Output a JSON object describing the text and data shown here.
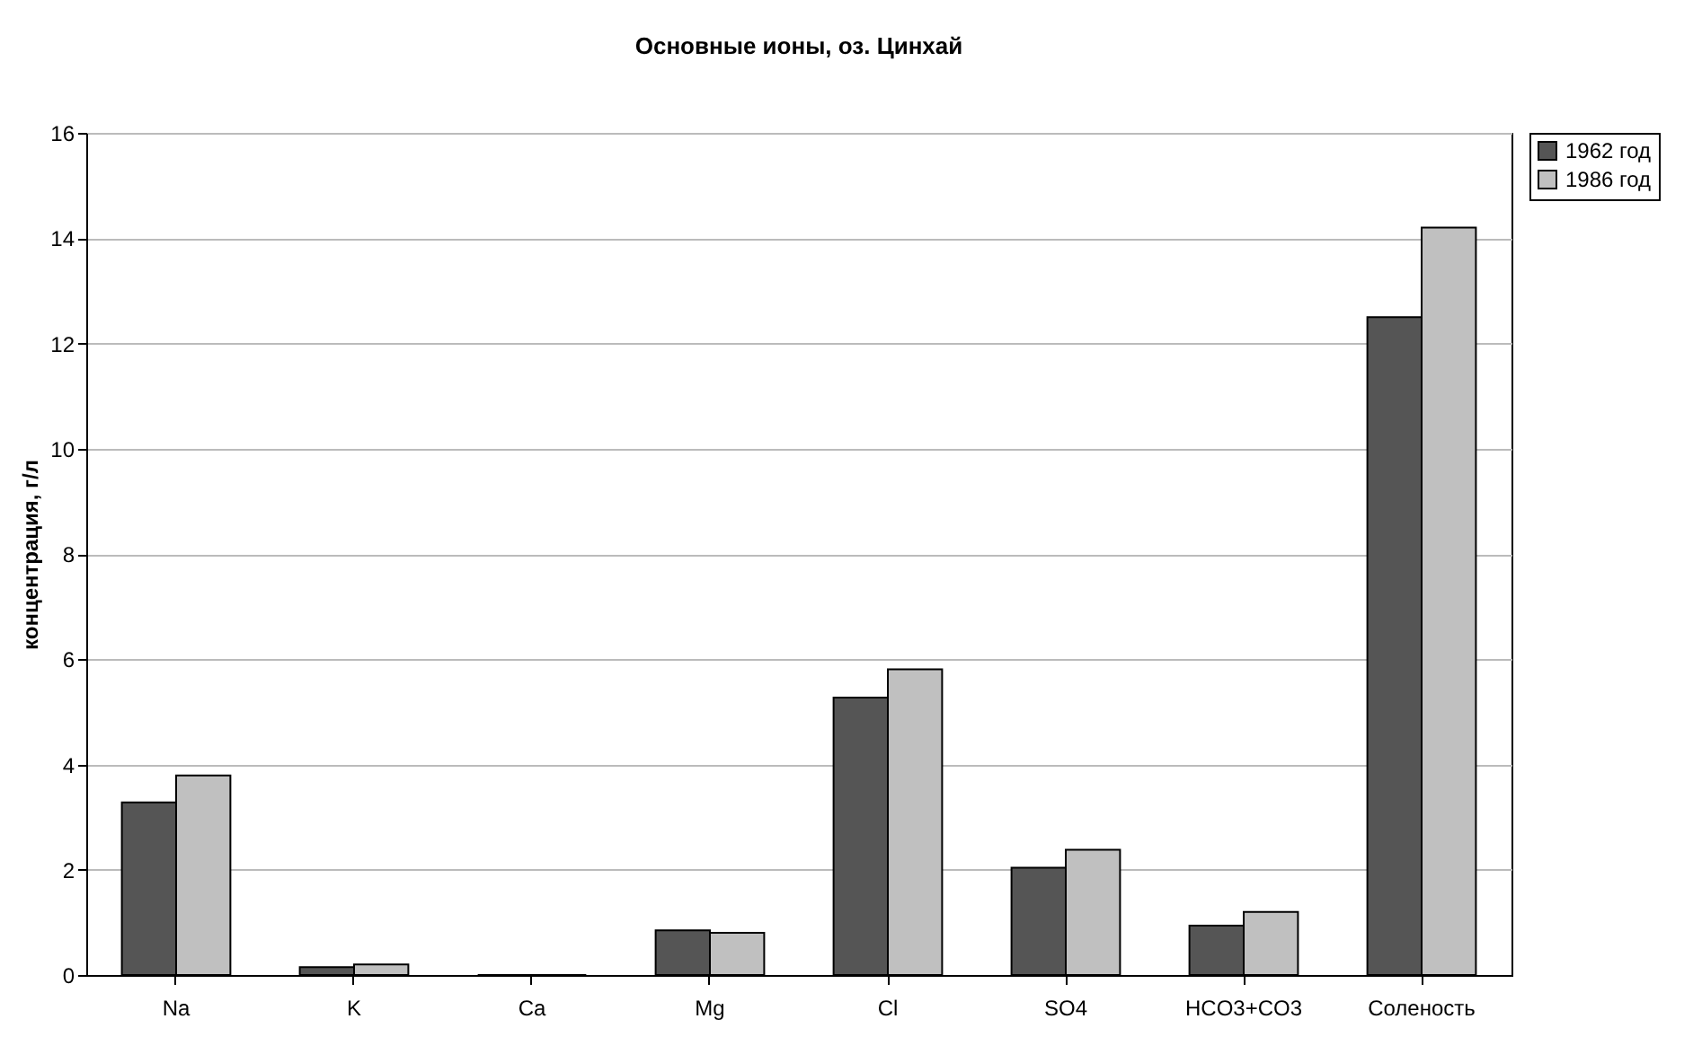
{
  "chart_data": {
    "type": "bar",
    "title": "Основные ионы, оз. Цинхай",
    "ylabel": "концентрация, г/л",
    "categories": [
      "Na",
      "K",
      "Ca",
      "Mg",
      "Cl",
      "SO4",
      "HCO3+CO3",
      "Соленость"
    ],
    "series": [
      {
        "name": "1962 год",
        "color": "#555555",
        "values": [
          3.28,
          0.15,
          0,
          0.85,
          5.27,
          2.04,
          0.94,
          12.5
        ]
      },
      {
        "name": "1986 год",
        "color": "#c0c0c0",
        "values": [
          3.79,
          0.2,
          0,
          0.8,
          5.81,
          2.38,
          1.2,
          14.2
        ]
      }
    ],
    "ylim": [
      0,
      16
    ],
    "yticks": [
      0,
      2,
      4,
      6,
      8,
      10,
      12,
      14,
      16
    ],
    "grid": "y",
    "legend": "right"
  }
}
